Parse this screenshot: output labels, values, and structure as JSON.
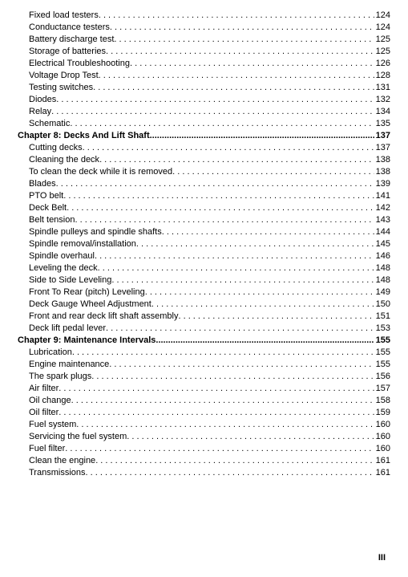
{
  "text_color": "#000000",
  "background_color": "#ffffff",
  "font_size_pt": 8.5,
  "page_number": "III",
  "dot_leader": " . . . . . . . . . . . . . . . . . . . . . . . . . . . . . . . . . . . . . . . . . . . . . . . . . . . . . . . . . . . . . . . . . . . . . . . . . . . . . . . . . . . . . . . . . . . . . . . . . . . . . . . . . . . . . . . . . . . . . . . . . . . . . . . . . . . . . . . . . . . . . . . . . . . . . .",
  "chapter_leader": " ....................................................................................................................................................................................................",
  "lines": [
    {
      "type": "entry",
      "label": "Fixed load testers",
      "page": "124"
    },
    {
      "type": "entry",
      "label": "Conductance testers",
      "page": "124"
    },
    {
      "type": "entry",
      "label": "Battery discharge test",
      "page": "125"
    },
    {
      "type": "entry",
      "label": "Storage of batteries",
      "page": "125"
    },
    {
      "type": "entry",
      "label": "Electrical Troubleshooting",
      "page": "126"
    },
    {
      "type": "entry",
      "label": "Voltage Drop Test",
      "page": "128"
    },
    {
      "type": "entry",
      "label": "Testing switches",
      "page": "131"
    },
    {
      "type": "entry",
      "label": "Diodes",
      "page": "132"
    },
    {
      "type": "entry",
      "label": "Relay",
      "page": "134"
    },
    {
      "type": "entry",
      "label": "Schematic",
      "page": "135"
    },
    {
      "type": "chapter",
      "label": "Chapter 8: Decks And Lift Shaft",
      "page": " 137"
    },
    {
      "type": "entry",
      "label": "Cutting decks",
      "page": "137"
    },
    {
      "type": "entry",
      "label": "Cleaning the deck",
      "page": "138"
    },
    {
      "type": "entry",
      "label": "To clean the deck while it is removed",
      "page": "138"
    },
    {
      "type": "entry",
      "label": "Blades",
      "page": "139"
    },
    {
      "type": "entry",
      "label": "PTO belt",
      "page": "141"
    },
    {
      "type": "entry",
      "label": "Deck Belt",
      "page": "142"
    },
    {
      "type": "entry",
      "label": "Belt tension",
      "page": "143"
    },
    {
      "type": "entry",
      "label": "Spindle pulleys and spindle shafts",
      "page": "144"
    },
    {
      "type": "entry",
      "label": "Spindle removal/installation",
      "page": "145"
    },
    {
      "type": "entry",
      "label": "Spindle overhaul",
      "page": "146"
    },
    {
      "type": "entry",
      "label": "Leveling the deck",
      "page": "148"
    },
    {
      "type": "entry",
      "label": "Side to Side Leveling",
      "page": "148"
    },
    {
      "type": "entry",
      "label": "Front To Rear (pitch) Leveling",
      "page": "149"
    },
    {
      "type": "entry",
      "label": "Deck Gauge Wheel Adjustment",
      "page": "150"
    },
    {
      "type": "entry",
      "label": "Front and rear deck lift shaft assembly",
      "page": "151"
    },
    {
      "type": "entry",
      "label": "Deck lift pedal lever",
      "page": "153"
    },
    {
      "type": "chapter",
      "label": "Chapter 9: Maintenance Intervals",
      "page": "155"
    },
    {
      "type": "entry",
      "label": "Lubrication",
      "page": "155"
    },
    {
      "type": "entry",
      "label": "Engine maintenance",
      "page": "155"
    },
    {
      "type": "entry",
      "label": "The spark plugs",
      "page": "156"
    },
    {
      "type": "entry",
      "label": "Air filter",
      "page": "157"
    },
    {
      "type": "entry",
      "label": "Oil change",
      "page": "158"
    },
    {
      "type": "entry",
      "label": "Oil filter",
      "page": "159"
    },
    {
      "type": "entry",
      "label": "Fuel system",
      "page": "160"
    },
    {
      "type": "entry",
      "label": "Servicing the fuel system",
      "page": "160"
    },
    {
      "type": "entry",
      "label": "Fuel filter",
      "page": "160"
    },
    {
      "type": "entry",
      "label": "Clean the engine",
      "page": "161"
    },
    {
      "type": "entry",
      "label": "Transmissions",
      "page": "161"
    }
  ]
}
